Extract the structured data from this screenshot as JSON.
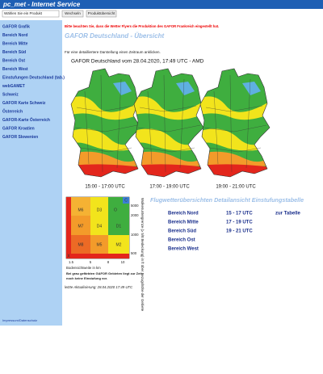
{
  "header": {
    "title": "pc_met - Internet Service"
  },
  "toolbar": {
    "select": "Wählen Sie ein Produkt",
    "buttons": [
      "Wechseln",
      "Produktübersicht"
    ]
  },
  "sidebar": {
    "items": [
      "GAFOR Grafik",
      "Bereich Nord",
      "Bereich Mitte",
      "Bereich Süd",
      "Bereich Ost",
      "Bereich West",
      "Einstufungen Deutschland (tab.)",
      "webGAMET",
      "Schweiz",
      "GAFOR Karte Schweiz",
      "Österreich",
      "GAFOR-Karte Österreich",
      "GAFOR Kroatien",
      "GAFOR Slowenien"
    ],
    "footer": "Impressum/Datenschutz"
  },
  "notice": "Bitte beachten Sie, dass die Wetter Flyers die Produktion des GAFOR Frankreich eingestellt hat.",
  "heading": "GAFOR Deutschland - Übersicht",
  "instruction": "Für eine detailliertere Darstellung einen Zeitraum anklicken.",
  "maps": {
    "title": "GAFOR Deutschland vom 28.04.2020, 17:49 UTC - AMD",
    "labels": [
      "15:00 - 17:00 UTC",
      "17:00 - 19:00 UTC",
      "19:00 - 21:00 UTC"
    ]
  },
  "legend": {
    "cells": [
      "M6",
      "D3",
      "O",
      "C",
      "M7",
      "D4",
      "D1",
      "M8",
      "M5",
      "M2",
      "X"
    ],
    "right_ticks": [
      "5000",
      "2000",
      "1000",
      "500"
    ],
    "bottom_ticks": [
      "1.5",
      "5",
      "8",
      "10"
    ],
    "bottom_axis": "Bodensichtweite in km",
    "right_axis": "Wolkenuntergrenze (≥ 5/8 Bedeckung) in ft über Bezugshöhe der Gebiete",
    "note": [
      "Bei grau gefärbten GAFOR Gebieten liegt zur Zeit",
      "noch keine Einstufung vor."
    ]
  },
  "links": {
    "heading": "Flugwetterübersichten Detailansicht Einstufungstabelle",
    "regions": [
      "Bereich Nord",
      "Bereich Mitte",
      "Bereich Süd",
      "Bereich Ost",
      "Bereich West"
    ],
    "times": [
      "15 - 17 UTC",
      "17 - 19 UTC",
      "19 - 21 UTC"
    ],
    "table": "zur Tabelle"
  },
  "updated": "letzte Aktualisierung: 28.04.2020 17:49 UTC"
}
